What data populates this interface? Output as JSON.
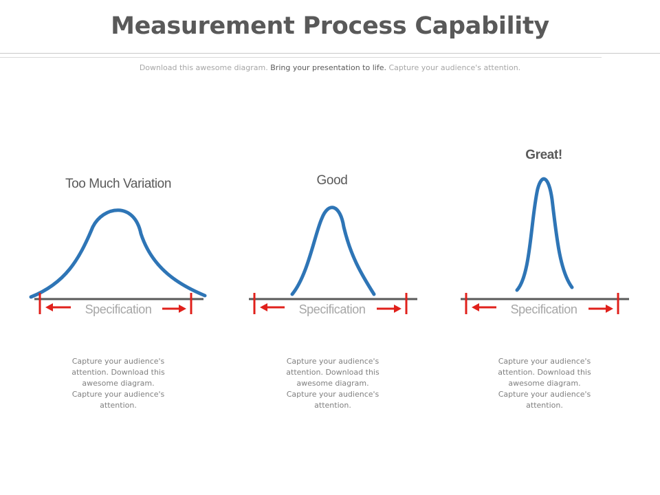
{
  "header": {
    "title": "Measurement Process Capability",
    "subtitle_part1": "Download this awesome diagram.",
    "subtitle_part2": "Bring your presentation to life.",
    "subtitle_part3": "Capture your audience's attention."
  },
  "panels": [
    {
      "label": "Too Much Variation",
      "spec_label": "Specification",
      "description": "Capture your audience's attention. Download this awesome diagram. Capture your audience's attention."
    },
    {
      "label": "Good",
      "spec_label": "Specification",
      "description": "Capture your audience's attention. Download this awesome diagram. Capture your audience's attention."
    },
    {
      "label": "Great!",
      "spec_label": "Specification",
      "description": "Capture your audience's attention. Download this awesome diagram. Capture your audience's attention."
    }
  ],
  "colors": {
    "curve": "#2e75b6",
    "axis": "#595959",
    "spec_marker": "#e0201b",
    "title": "#595959"
  }
}
